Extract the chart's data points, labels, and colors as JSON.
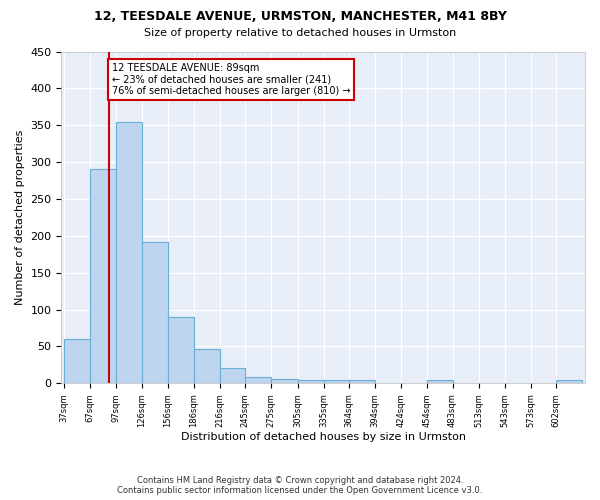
{
  "title1": "12, TEESDALE AVENUE, URMSTON, MANCHESTER, M41 8BY",
  "title2": "Size of property relative to detached houses in Urmston",
  "xlabel": "Distribution of detached houses by size in Urmston",
  "ylabel": "Number of detached properties",
  "footer1": "Contains HM Land Registry data © Crown copyright and database right 2024.",
  "footer2": "Contains public sector information licensed under the Open Government Licence v3.0.",
  "bin_edges": [
    37,
    67,
    97,
    126,
    156,
    186,
    216,
    245,
    275,
    305,
    335,
    364,
    394,
    424,
    454,
    483,
    513,
    543,
    573,
    602,
    632
  ],
  "bar_heights": [
    60,
    290,
    355,
    192,
    90,
    47,
    21,
    9,
    6,
    5,
    5,
    5,
    0,
    0,
    5,
    0,
    0,
    0,
    0,
    5
  ],
  "bar_color": "#bdd5ee",
  "bar_edge_color": "#6aaed6",
  "bg_color": "#e8eef8",
  "grid_color": "#ffffff",
  "property_size": 89,
  "red_line_color": "#cc0000",
  "annotation_text": "12 TEESDALE AVENUE: 89sqm\n← 23% of detached houses are smaller (241)\n76% of semi-detached houses are larger (810) →",
  "annotation_box_color": "#ffffff",
  "annotation_box_edge": "#cc0000",
  "ylim": [
    0,
    450
  ],
  "yticks": [
    0,
    50,
    100,
    150,
    200,
    250,
    300,
    350,
    400,
    450
  ]
}
